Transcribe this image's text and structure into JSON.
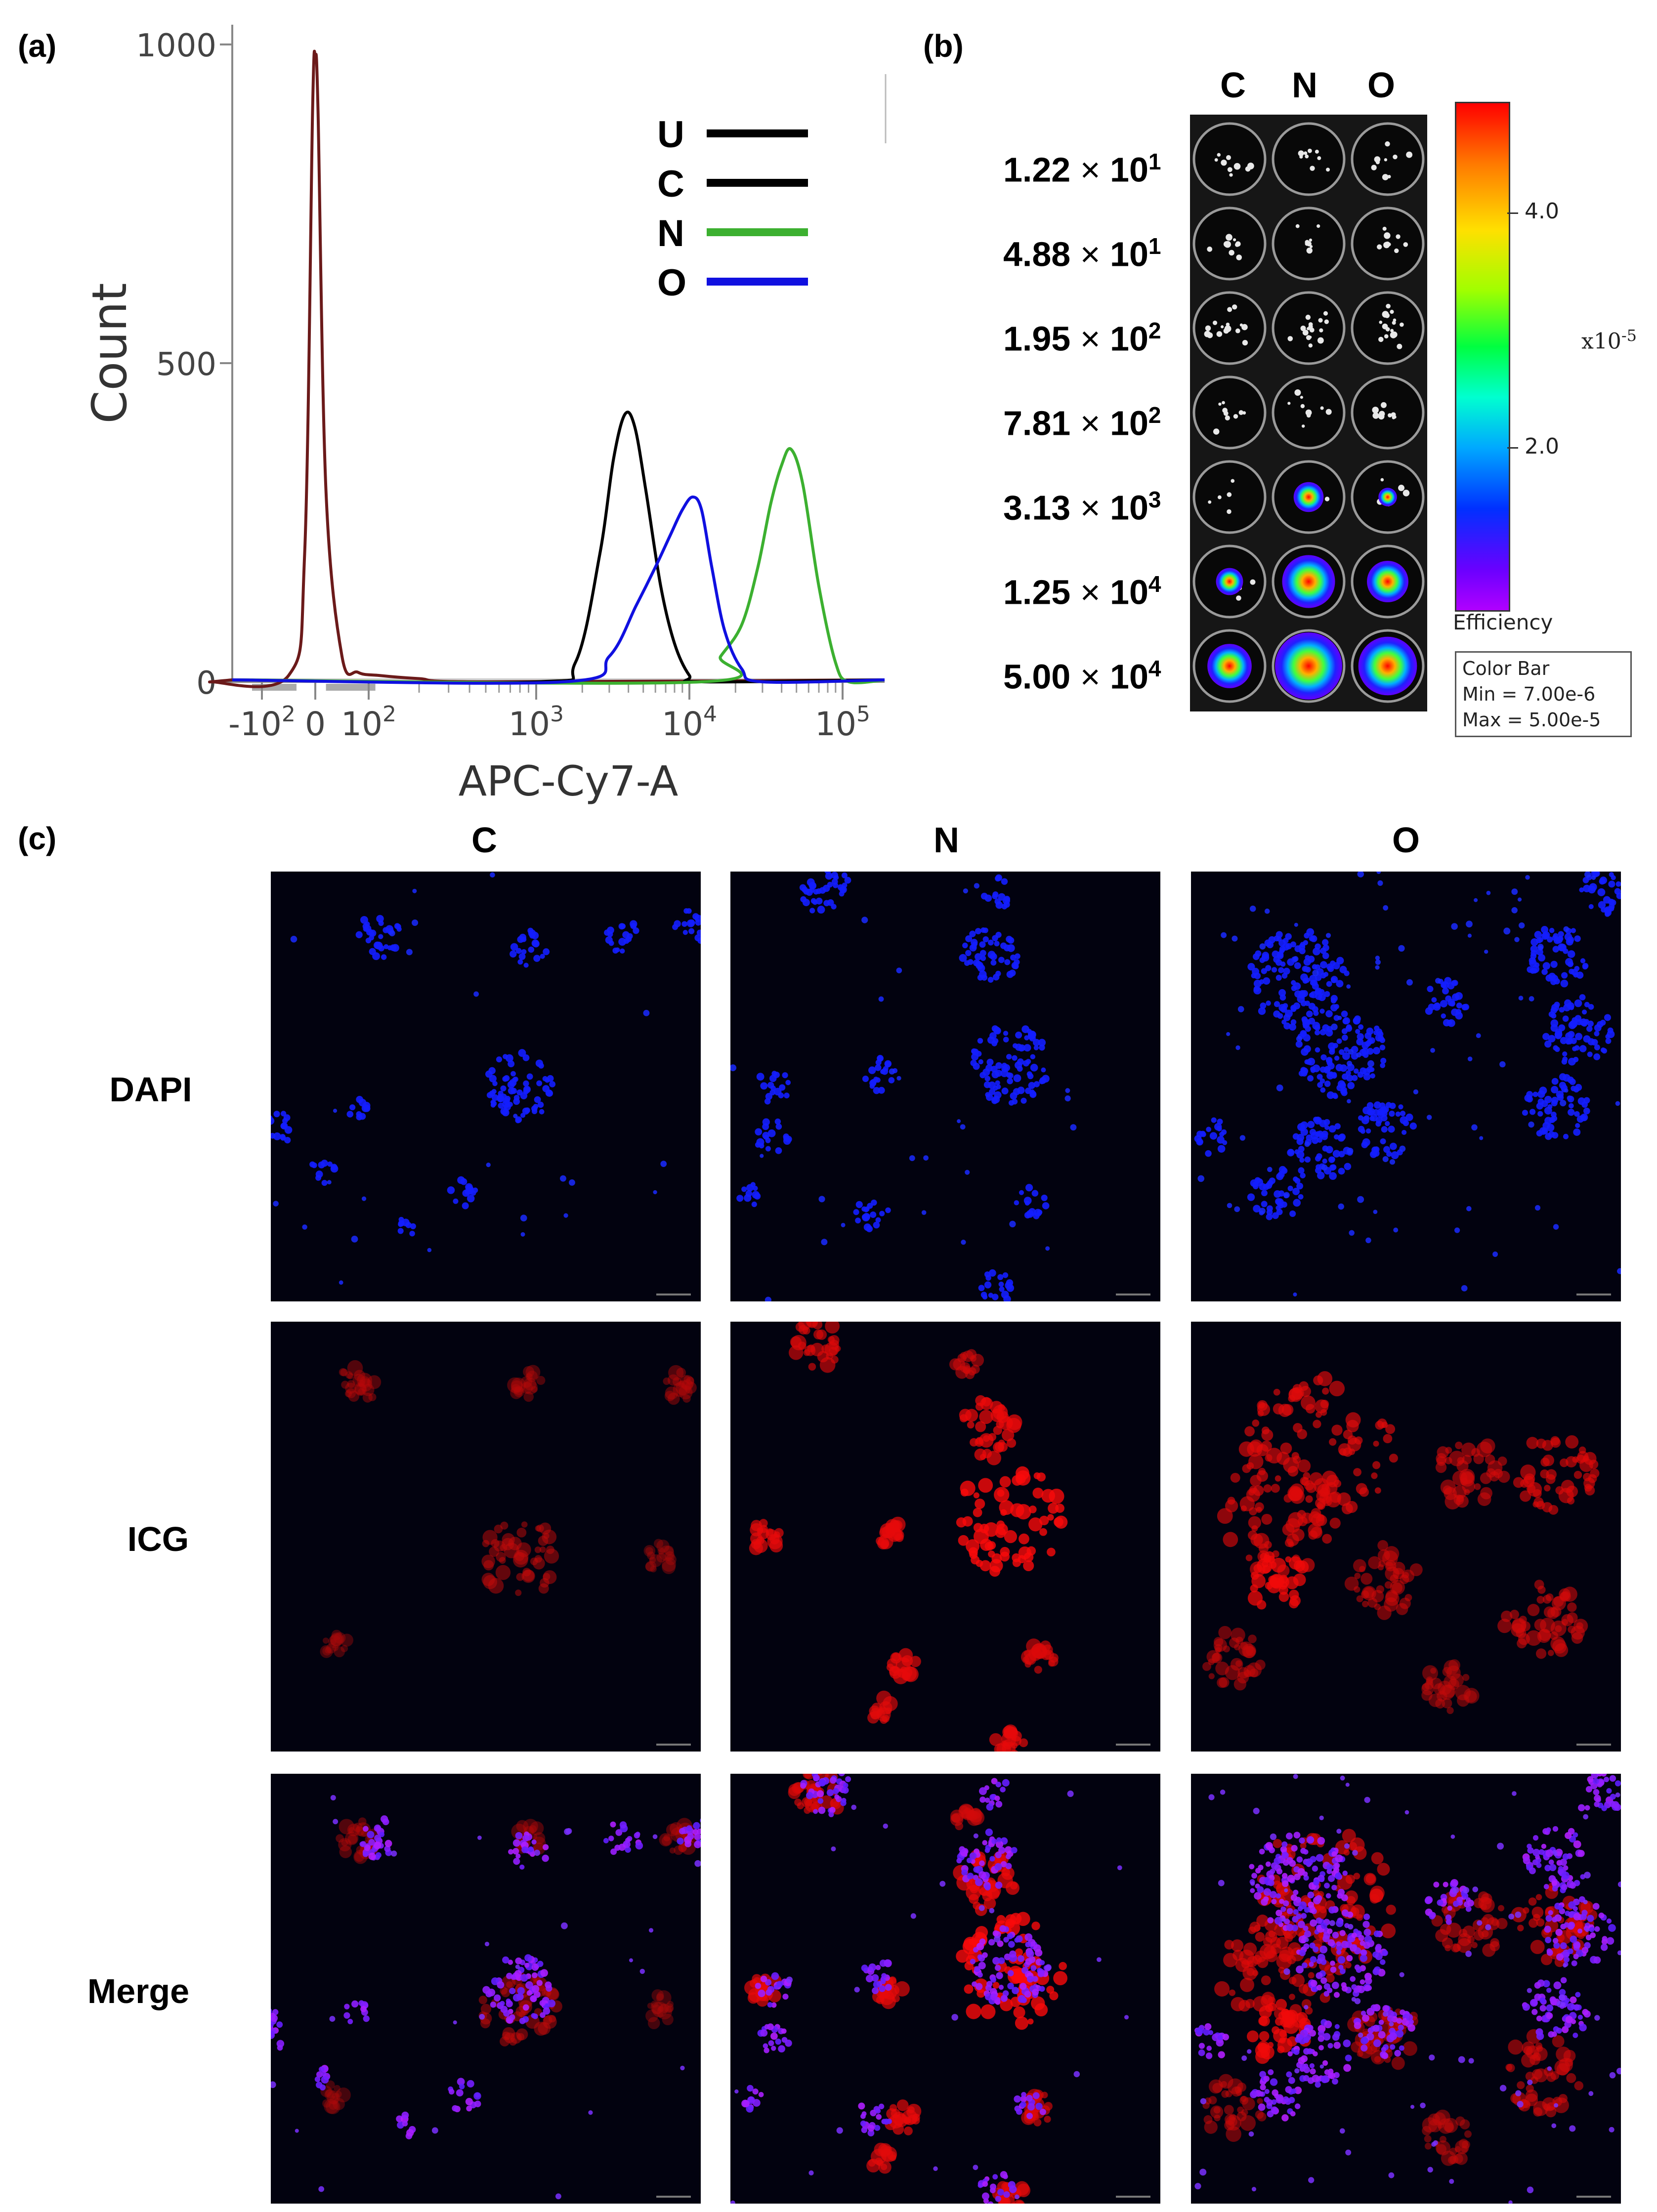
{
  "panels": {
    "a": "(a)",
    "b": "(b)",
    "c": "(c)"
  },
  "chart_data": {
    "type": "line",
    "title": "",
    "xlabel": "APC-Cy7-A",
    "ylabel": "Count",
    "x_scale": "biexponential",
    "xlim": [
      -300,
      200000
    ],
    "ylim": [
      0,
      1000
    ],
    "y_ticks": [
      "0",
      "500",
      "1000"
    ],
    "x_ticks": [
      {
        "value": -100,
        "label": "-10",
        "exp": "2"
      },
      {
        "value": 0,
        "label": "0",
        "exp": ""
      },
      {
        "value": 100,
        "label": "10",
        "exp": "2"
      },
      {
        "value": 1000,
        "label": "10",
        "exp": "3"
      },
      {
        "value": 10000,
        "label": "10",
        "exp": "4"
      },
      {
        "value": 100000,
        "label": "10",
        "exp": "5"
      }
    ],
    "legend_position": "top-right",
    "series": [
      {
        "name": "U",
        "color": "#000000",
        "x": [
          -200,
          -50,
          -20,
          -5,
          0,
          5,
          20,
          50,
          80,
          120,
          200,
          500
        ],
        "y": [
          0,
          10,
          200,
          900,
          980,
          900,
          300,
          40,
          15,
          10,
          5,
          0
        ]
      },
      {
        "name": "C",
        "color": "#000000",
        "x": [
          1000,
          1800,
          2600,
          3200,
          3800,
          4400,
          5200,
          6500,
          8000,
          10000,
          12000
        ],
        "y": [
          0,
          30,
          200,
          350,
          420,
          400,
          300,
          150,
          60,
          10,
          0
        ]
      },
      {
        "name": "N",
        "color": "#3cb030",
        "x": [
          12000,
          16000,
          22000,
          28000,
          34000,
          40000,
          46000,
          55000,
          70000,
          90000,
          110000
        ],
        "y": [
          0,
          40,
          90,
          180,
          280,
          340,
          365,
          310,
          150,
          30,
          0
        ]
      },
      {
        "name": "O",
        "color": "#1010e0",
        "x": [
          1500,
          3000,
          4500,
          6000,
          7500,
          9000,
          10500,
          12000,
          14000,
          17000,
          22000,
          30000
        ],
        "y": [
          0,
          40,
          120,
          180,
          230,
          270,
          290,
          270,
          180,
          80,
          20,
          0
        ]
      }
    ]
  },
  "imaging_b": {
    "columns": [
      "C",
      "N",
      "O"
    ],
    "rows": [
      {
        "mantissa": "1.22",
        "exp": "1"
      },
      {
        "mantissa": "4.88",
        "exp": "1"
      },
      {
        "mantissa": "1.95",
        "exp": "2"
      },
      {
        "mantissa": "7.81",
        "exp": "2"
      },
      {
        "mantissa": "3.13",
        "exp": "3"
      },
      {
        "mantissa": "1.25",
        "exp": "4"
      },
      {
        "mantissa": "5.00",
        "exp": "4"
      }
    ],
    "times_symbol": "×",
    "colorbar": {
      "tick_high": "4.0",
      "tick_low": "2.0",
      "scale_base": "x10",
      "scale_exp": "-5",
      "label": "Efficiency",
      "legend_title": "Color Bar",
      "legend_min": "Min = 7.00e-6",
      "legend_max": "Max = 5.00e-5"
    },
    "signal_levels": [
      [
        0,
        0,
        0
      ],
      [
        0,
        0,
        0
      ],
      [
        0,
        0,
        0
      ],
      [
        0,
        0,
        0
      ],
      [
        0,
        0.35,
        0.15
      ],
      [
        0.3,
        0.75,
        0.55
      ],
      [
        0.6,
        1.0,
        0.85
      ]
    ]
  },
  "microscopy_c": {
    "columns": [
      "C",
      "N",
      "O"
    ],
    "rows": [
      "DAPI",
      "ICG",
      "Merge"
    ]
  }
}
